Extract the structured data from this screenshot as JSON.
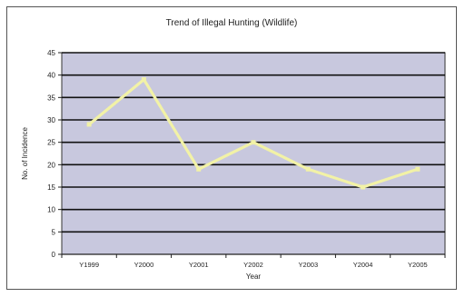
{
  "chart_data": {
    "type": "line",
    "title": "Trend of Illegal Hunting (Wildlife)",
    "xlabel": "Year",
    "ylabel": "No. of Incidence",
    "categories": [
      "Y1999",
      "Y2000",
      "Y2001",
      "Y2002",
      "Y2003",
      "Y2004",
      "Y2005"
    ],
    "series": [
      {
        "values": [
          29,
          39,
          19,
          25,
          19,
          15,
          19
        ]
      }
    ],
    "ylim": [
      0,
      45
    ],
    "yticks": [
      0,
      5,
      10,
      15,
      20,
      25,
      30,
      35,
      40,
      45
    ],
    "grid": true,
    "legend": "none",
    "colors": {
      "plot_background": "#c8c8de",
      "line": "#f2f2a6",
      "gridline": "#111111"
    }
  }
}
